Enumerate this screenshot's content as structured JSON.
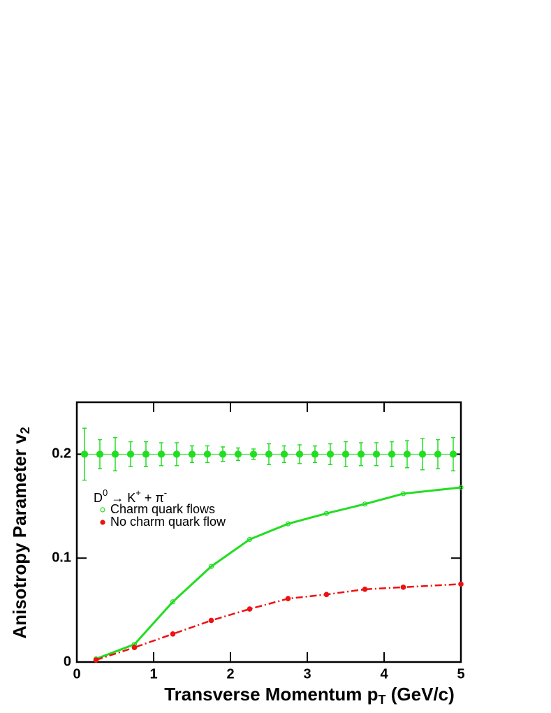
{
  "chart_data": {
    "type": "line",
    "xlabel_parts": [
      "Transverse Momentum p",
      "T",
      " (GeV/c)"
    ],
    "ylabel_parts": [
      "Anisotropy Parameter v",
      "2"
    ],
    "legend_title_parts": [
      "D",
      "0",
      " → K",
      "+",
      " + π",
      "-"
    ],
    "xlim": [
      0,
      5
    ],
    "xticks": [
      0,
      1,
      2,
      3,
      4,
      5
    ],
    "ylim": [
      0,
      0.25
    ],
    "yticks": [
      0,
      0.1,
      0.2
    ],
    "series": [
      {
        "color": "#22dd22",
        "marker": "filled",
        "line": "thin",
        "x": [
          0.1,
          0.3,
          0.5,
          0.7,
          0.9,
          1.1,
          1.3,
          1.5,
          1.7,
          1.9,
          2.1,
          2.3,
          2.5,
          2.7,
          2.9,
          3.1,
          3.3,
          3.5,
          3.7,
          3.9,
          4.1,
          4.3,
          4.5,
          4.7,
          4.9
        ],
        "values": [
          0.2,
          0.2,
          0.2,
          0.2,
          0.2,
          0.2,
          0.2,
          0.2,
          0.2,
          0.2,
          0.2,
          0.2,
          0.2,
          0.2,
          0.2,
          0.2,
          0.2,
          0.2,
          0.2,
          0.2,
          0.2,
          0.2,
          0.2,
          0.2,
          0.2
        ],
        "errors": [
          0.025,
          0.014,
          0.016,
          0.012,
          0.012,
          0.011,
          0.011,
          0.008,
          0.008,
          0.007,
          0.006,
          0.005,
          0.01,
          0.008,
          0.009,
          0.008,
          0.01,
          0.012,
          0.011,
          0.011,
          0.012,
          0.013,
          0.015,
          0.014,
          0.016
        ]
      },
      {
        "name": "Charm quark flows",
        "color": "#22dd22",
        "marker": "open",
        "line": "solid",
        "x": [
          0.25,
          0.75,
          1.25,
          1.75,
          2.25,
          2.75,
          3.25,
          3.75,
          4.25,
          5
        ],
        "values": [
          0.003,
          0.017,
          0.058,
          0.092,
          0.118,
          0.133,
          0.143,
          0.152,
          0.162,
          0.168
        ]
      },
      {
        "name": "No charm quark flow",
        "color": "#ee1111",
        "marker": "filled",
        "line": "dashdot",
        "x": [
          0.25,
          0.75,
          1.25,
          1.75,
          2.25,
          2.75,
          3.25,
          3.75,
          4.25,
          5
        ],
        "values": [
          0.002,
          0.014,
          0.027,
          0.04,
          0.051,
          0.061,
          0.065,
          0.07,
          0.072,
          0.075
        ]
      }
    ]
  }
}
